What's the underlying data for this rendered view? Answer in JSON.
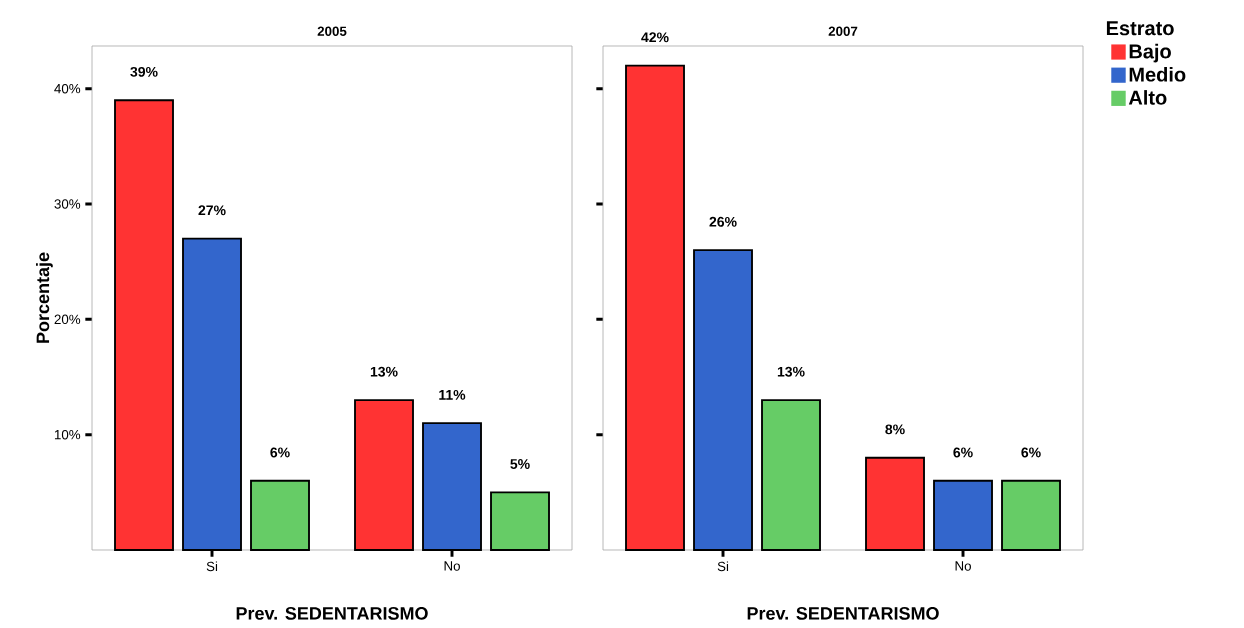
{
  "chart_data": [
    {
      "type": "bar",
      "title": "2005",
      "xlabel": "Prev. SEDENTARISMO",
      "ylabel": "Porcentaje",
      "categories": [
        "Si",
        "No"
      ],
      "series": [
        {
          "color": "#ff3333",
          "values": [
            39,
            13
          ],
          "value_labels": [
            "39%",
            "13%"
          ]
        },
        {
          "color": "#3366cc",
          "values": [
            27,
            11
          ],
          "value_labels": [
            "27%",
            "11%"
          ]
        },
        {
          "color": "#66cc66",
          "values": [
            6,
            5
          ],
          "value_labels": [
            "6%",
            "5%"
          ]
        }
      ],
      "ylim": [
        0,
        43.7
      ],
      "yticks": [
        {
          "value": 10,
          "label": "10%"
        },
        {
          "value": 20,
          "label": "20%"
        },
        {
          "value": 30,
          "label": "30%"
        },
        {
          "value": 40,
          "label": "40%"
        }
      ],
      "grid": false,
      "legend": false
    },
    {
      "type": "bar",
      "title": "2007",
      "xlabel": "Prev. SEDENTARISMO",
      "legend_title": "Estrato",
      "categories": [
        "Si",
        "No"
      ],
      "series": [
        {
          "name": "Bajo",
          "color": "#ff3333",
          "values": [
            42,
            8
          ],
          "value_labels": [
            "42%",
            "8%"
          ]
        },
        {
          "name": "Medio",
          "color": "#3366cc",
          "values": [
            26,
            6
          ],
          "value_labels": [
            "26%",
            "6%"
          ]
        },
        {
          "name": "Alto",
          "color": "#66cc66",
          "values": [
            13,
            6
          ],
          "value_labels": [
            "13%",
            "6%"
          ]
        }
      ],
      "ylim": [
        0,
        43.7
      ],
      "yticks": [
        {
          "value": 10,
          "label": null
        },
        {
          "value": 20,
          "label": null
        },
        {
          "value": 30,
          "label": null
        },
        {
          "value": 40,
          "label": null
        }
      ],
      "tick_labels": "x",
      "grid": false,
      "legend": "top right"
    }
  ]
}
